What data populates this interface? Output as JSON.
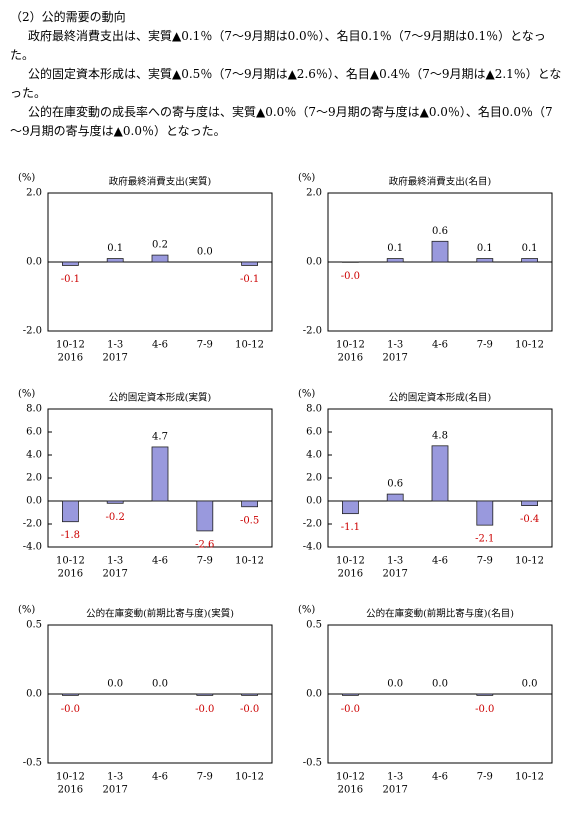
{
  "heading": "（2）公的需要の動向",
  "paragraphs": [
    "政府最終消費支出は、実質▲0.1％（7～9月期は0.0％）、名目0.1％（7～9月期は0.1％）となった。",
    "公的固定資本形成は、実質▲0.5％（7～9月期は▲2.6％）、名目▲0.4％（7～9月期は▲2.1％）となった。",
    "公的在庫変動の成長率への寄与度は、実質▲0.0％（7～9月期の寄与度は▲0.0％）、名目0.0％（7～9月期の寄与度は▲0.0％）となった。"
  ],
  "chart_data": [
    {
      "type": "bar",
      "title": "政府最終消費支出(実質)",
      "unit": "(%)",
      "categories": [
        "10-12",
        "1-3",
        "4-6",
        "7-9",
        "10-12"
      ],
      "category_years": [
        "2016",
        "2017",
        null,
        null,
        null
      ],
      "values": [
        -0.1,
        0.1,
        0.2,
        0,
        -0.1
      ],
      "value_labels": [
        "-0.1",
        "0.1",
        "0.2",
        "0.0",
        "-0.1"
      ],
      "ylim": [
        -2,
        2
      ],
      "yticks": [
        {
          "value": -2,
          "label": "-2.0"
        },
        {
          "value": 0,
          "label": "0.0"
        },
        {
          "value": 2,
          "label": "2.0"
        }
      ],
      "color": "#9999dd",
      "negative_label_color": "#cc0000"
    },
    {
      "type": "bar",
      "title": "政府最終消費支出(名目)",
      "unit": "(%)",
      "categories": [
        "10-12",
        "1-3",
        "4-6",
        "7-9",
        "10-12"
      ],
      "category_years": [
        "2016",
        "2017",
        null,
        null,
        null
      ],
      "values": [
        -0.01,
        0.1,
        0.6,
        0.1,
        0.1
      ],
      "value_labels": [
        "-0.0",
        "0.1",
        "0.6",
        "0.1",
        "0.1"
      ],
      "ylim": [
        -2,
        2
      ],
      "yticks": [
        {
          "value": -2,
          "label": "-2.0"
        },
        {
          "value": 0,
          "label": "0.0"
        },
        {
          "value": 2,
          "label": "2.0"
        }
      ],
      "color": "#9999dd",
      "negative_label_color": "#cc0000"
    },
    {
      "type": "bar",
      "title": "公的固定資本形成(実質)",
      "unit": "(%)",
      "categories": [
        "10-12",
        "1-3",
        "4-6",
        "7-9",
        "10-12"
      ],
      "category_years": [
        "2016",
        "2017",
        null,
        null,
        null
      ],
      "values": [
        -1.8,
        -0.2,
        4.7,
        -2.6,
        -0.5
      ],
      "value_labels": [
        "-1.8",
        "-0.2",
        "4.7",
        "-2.6",
        "-0.5"
      ],
      "ylim": [
        -4,
        8
      ],
      "yticks": [
        {
          "value": -4,
          "label": "-4.0"
        },
        {
          "value": -2,
          "label": "-2.0"
        },
        {
          "value": 0,
          "label": "0.0"
        },
        {
          "value": 2,
          "label": "2.0"
        },
        {
          "value": 4,
          "label": "4.0"
        },
        {
          "value": 6,
          "label": "6.0"
        },
        {
          "value": 8,
          "label": "8.0"
        }
      ],
      "color": "#9999dd",
      "negative_label_color": "#cc0000"
    },
    {
      "type": "bar",
      "title": "公的固定資本形成(名目)",
      "unit": "(%)",
      "categories": [
        "10-12",
        "1-3",
        "4-6",
        "7-9",
        "10-12"
      ],
      "category_years": [
        "2016",
        "2017",
        null,
        null,
        null
      ],
      "values": [
        -1.1,
        0.6,
        4.8,
        -2.1,
        -0.4
      ],
      "value_labels": [
        "-1.1",
        "0.6",
        "4.8",
        "-2.1",
        "-0.4"
      ],
      "ylim": [
        -4,
        8
      ],
      "yticks": [
        {
          "value": -4,
          "label": "-4.0"
        },
        {
          "value": -2,
          "label": "-2.0"
        },
        {
          "value": 0,
          "label": "0.0"
        },
        {
          "value": 2,
          "label": "2.0"
        },
        {
          "value": 4,
          "label": "4.0"
        },
        {
          "value": 6,
          "label": "6.0"
        },
        {
          "value": 8,
          "label": "8.0"
        }
      ],
      "color": "#9999dd",
      "negative_label_color": "#cc0000"
    },
    {
      "type": "bar",
      "title": "公的在庫変動(前期比寄与度)(実質)",
      "unit": "(%)",
      "categories": [
        "10-12",
        "1-3",
        "4-6",
        "7-9",
        "10-12"
      ],
      "category_years": [
        "2016",
        "2017",
        null,
        null,
        null
      ],
      "values": [
        -0.01,
        0,
        0,
        -0.01,
        -0.01
      ],
      "value_labels": [
        "-0.0",
        "0.0",
        "0.0",
        "-0.0",
        "-0.0"
      ],
      "ylim": [
        -0.5,
        0.5
      ],
      "yticks": [
        -0.5,
        {
          "value": 0,
          "label": "0.0"
        },
        0.5
      ],
      "color": "#9999dd",
      "negative_label_color": "#cc0000"
    },
    {
      "type": "bar",
      "title": "公的在庫変動(前期比寄与度)(名目)",
      "unit": "(%)",
      "categories": [
        "10-12",
        "1-3",
        "4-6",
        "7-9",
        "10-12"
      ],
      "category_years": [
        "2016",
        "2017",
        null,
        null,
        null
      ],
      "values": [
        -0.01,
        0,
        0,
        -0.01,
        0
      ],
      "value_labels": [
        "-0.0",
        "0.0",
        "0.0",
        "-0.0",
        "0.0"
      ],
      "ylim": [
        -0.5,
        0.5
      ],
      "yticks": [
        -0.5,
        {
          "value": 0,
          "label": "0.0"
        },
        0.5
      ],
      "color": "#9999dd",
      "negative_label_color": "#cc0000"
    }
  ]
}
